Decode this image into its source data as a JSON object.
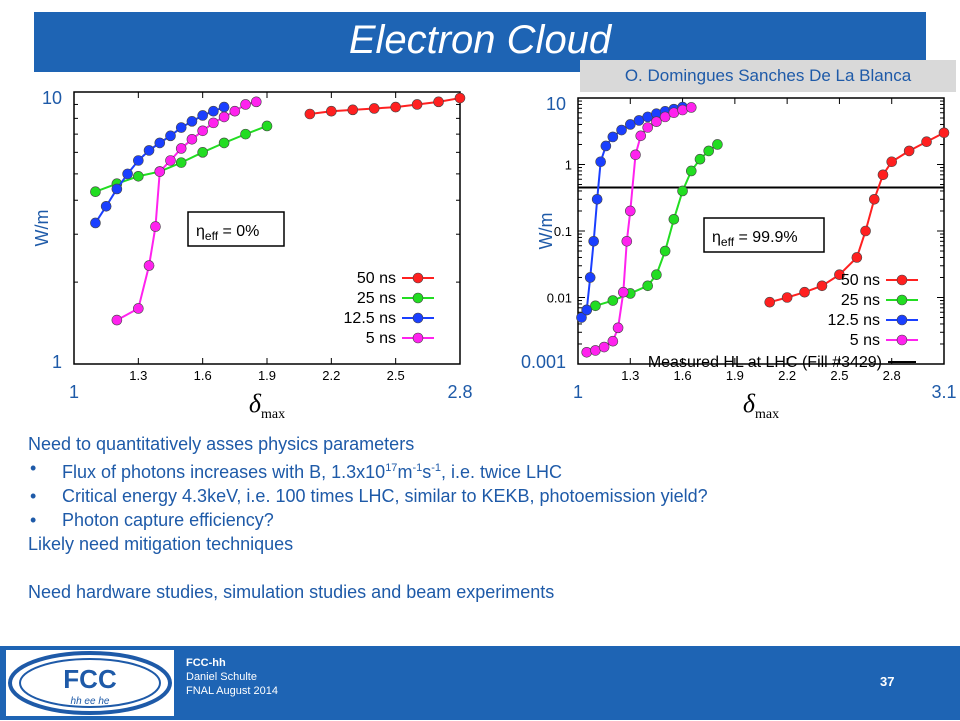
{
  "slide": {
    "title": "Electron Cloud",
    "author": "O. Domingues Sanches De La Blanca"
  },
  "chart_data": [
    {
      "type": "line",
      "ylabel": "W/m",
      "xlabel": "δmax",
      "log_y": true,
      "xlim": [
        1.0,
        2.8
      ],
      "ylim": [
        1,
        10
      ],
      "xticks": [
        "1.3",
        "1.6",
        "1.9",
        "2.2",
        "2.5"
      ],
      "corner_labels": {
        "y_top": "10",
        "y_bottom": "1",
        "x_left": "1",
        "x_right": "2.8"
      },
      "annotation": "η_eff = 0%",
      "series": [
        {
          "name": "50 ns",
          "color": "#ff2020",
          "x": [
            2.1,
            2.2,
            2.3,
            2.4,
            2.5,
            2.6,
            2.7,
            2.8
          ],
          "y": [
            8.3,
            8.5,
            8.6,
            8.7,
            8.8,
            9.0,
            9.2,
            9.5
          ]
        },
        {
          "name": "25 ns",
          "color": "#22dd22",
          "x": [
            1.1,
            1.2,
            1.3,
            1.4,
            1.5,
            1.6,
            1.7,
            1.8,
            1.9
          ],
          "y": [
            4.3,
            4.6,
            4.9,
            5.1,
            5.5,
            6.0,
            6.5,
            7.0,
            7.5
          ]
        },
        {
          "name": "12.5 ns",
          "color": "#1a3fff",
          "x": [
            1.1,
            1.15,
            1.2,
            1.25,
            1.3,
            1.35,
            1.4,
            1.45,
            1.5,
            1.55,
            1.6,
            1.65,
            1.7
          ],
          "y": [
            3.3,
            3.8,
            4.4,
            5.0,
            5.6,
            6.1,
            6.5,
            6.9,
            7.4,
            7.8,
            8.2,
            8.5,
            8.8
          ]
        },
        {
          "name": "5 ns",
          "color": "#ff22ee",
          "x": [
            1.2,
            1.3,
            1.35,
            1.38,
            1.4,
            1.45,
            1.5,
            1.55,
            1.6,
            1.65,
            1.7,
            1.75,
            1.8,
            1.85
          ],
          "y": [
            1.45,
            1.6,
            2.3,
            3.2,
            5.1,
            5.6,
            6.2,
            6.7,
            7.2,
            7.7,
            8.1,
            8.5,
            9.0,
            9.2
          ]
        }
      ]
    },
    {
      "type": "line",
      "ylabel": "W/m",
      "xlabel": "δmax",
      "log_y": true,
      "xlim": [
        1.0,
        3.1
      ],
      "ylim": [
        0.001,
        10
      ],
      "xticks": [
        "1.3",
        "1.6",
        "1.9",
        "2.2",
        "2.5",
        "2.8"
      ],
      "yticks": [
        "1",
        "0.1",
        "0.01"
      ],
      "corner_labels": {
        "y_top": "10",
        "y_bottom": "0.001",
        "x_left": "1",
        "x_right": "3.1"
      },
      "annotation": "η_eff = 99.9%",
      "measured_label": "Measured HL at LHC (Fill #3429)",
      "measured_value": 0.45,
      "series": [
        {
          "name": "50 ns",
          "color": "#ff2020",
          "x": [
            2.1,
            2.2,
            2.3,
            2.4,
            2.5,
            2.6,
            2.65,
            2.7,
            2.75,
            2.8,
            2.9,
            3.0,
            3.1
          ],
          "y": [
            0.0085,
            0.01,
            0.012,
            0.015,
            0.022,
            0.04,
            0.1,
            0.3,
            0.7,
            1.1,
            1.6,
            2.2,
            3.0
          ]
        },
        {
          "name": "25 ns",
          "color": "#22dd22",
          "x": [
            1.05,
            1.1,
            1.2,
            1.3,
            1.4,
            1.45,
            1.5,
            1.55,
            1.6,
            1.65,
            1.7,
            1.75,
            1.8
          ],
          "y": [
            0.0065,
            0.0075,
            0.009,
            0.0115,
            0.015,
            0.022,
            0.05,
            0.15,
            0.4,
            0.8,
            1.2,
            1.6,
            2.0
          ]
        },
        {
          "name": "12.5 ns",
          "color": "#1a3fff",
          "x": [
            1.02,
            1.05,
            1.07,
            1.09,
            1.11,
            1.13,
            1.16,
            1.2,
            1.25,
            1.3,
            1.35,
            1.4,
            1.45,
            1.5,
            1.55,
            1.6
          ],
          "y": [
            0.005,
            0.0065,
            0.02,
            0.07,
            0.3,
            1.1,
            1.9,
            2.6,
            3.3,
            4.0,
            4.6,
            5.2,
            5.8,
            6.3,
            6.8,
            7.3
          ]
        },
        {
          "name": "5 ns",
          "color": "#ff22ee",
          "x": [
            1.05,
            1.1,
            1.15,
            1.2,
            1.23,
            1.26,
            1.28,
            1.3,
            1.33,
            1.36,
            1.4,
            1.45,
            1.5,
            1.55,
            1.6,
            1.65
          ],
          "y": [
            0.0015,
            0.0016,
            0.0018,
            0.0022,
            0.0035,
            0.012,
            0.07,
            0.2,
            1.4,
            2.7,
            3.6,
            4.4,
            5.2,
            6.0,
            6.6,
            7.2
          ]
        }
      ]
    }
  ],
  "body": {
    "line1": "Need to quantitatively asses physics parameters",
    "bullet1_pre": "Flux of photons increases with B, 1.3x10",
    "bullet1_sup1": "17",
    "bullet1_mid1": "m",
    "bullet1_sup2": "-1",
    "bullet1_mid2": "s",
    "bullet1_sup3": "-1",
    "bullet1_post": ", i.e. twice LHC",
    "bullet2": "Critical energy 4.3keV, i.e. 100 times LHC, similar to KEKB, photoemission yield?",
    "bullet3": "Photon capture efficiency?",
    "line2": "Likely need mitigation techniques",
    "line3": "Need hardware studies, simulation studies and beam experiments"
  },
  "footer": {
    "line1": "FCC-hh",
    "line2": "Daniel Schulte",
    "line3": "FNAL August 2014",
    "page": "37",
    "logo_text": "FCC",
    "logo_sub": "hh ee he"
  }
}
